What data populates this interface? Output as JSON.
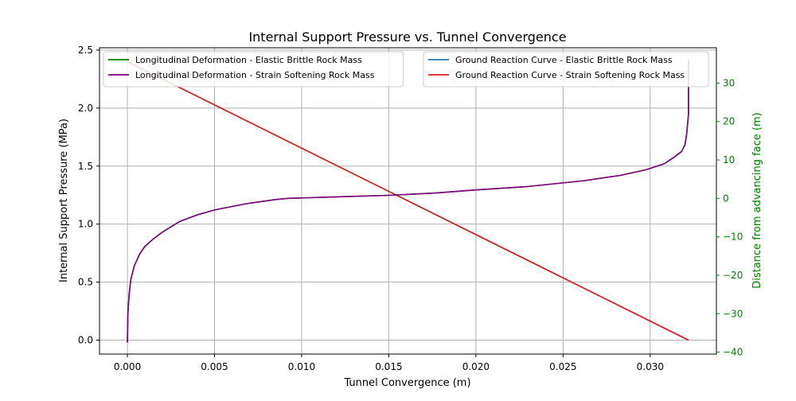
{
  "chart_data": {
    "type": "line",
    "title": "Internal Support Pressure vs. Tunnel Convergence",
    "xlabel": "Tunnel Convergence (m)",
    "ylabel": "Internal Support Pressure (MPa)",
    "y2label": "Distance from advancing face (m)",
    "xlim": [
      -0.0016,
      0.0338
    ],
    "ylim": [
      -0.12,
      2.52
    ],
    "y2lim": [
      -40.5,
      39.2
    ],
    "xticks": [
      {
        "value": 0.0,
        "label": "0.000"
      },
      {
        "value": 0.005,
        "label": "0.005"
      },
      {
        "value": 0.01,
        "label": "0.010"
      },
      {
        "value": 0.015,
        "label": "0.015"
      },
      {
        "value": 0.02,
        "label": "0.020"
      },
      {
        "value": 0.025,
        "label": "0.025"
      },
      {
        "value": 0.03,
        "label": "0.030"
      }
    ],
    "yticks": [
      {
        "value": 0.0,
        "label": "0.0"
      },
      {
        "value": 0.5,
        "label": "0.5"
      },
      {
        "value": 1.0,
        "label": "1.0"
      },
      {
        "value": 1.5,
        "label": "1.5"
      },
      {
        "value": 2.0,
        "label": "2.0"
      },
      {
        "value": 2.5,
        "label": "2.5"
      }
    ],
    "y2ticks": [
      {
        "value": -40,
        "label": "−40"
      },
      {
        "value": -30,
        "label": "−30"
      },
      {
        "value": -20,
        "label": "−20"
      },
      {
        "value": -10,
        "label": "−10"
      },
      {
        "value": 0,
        "label": "0"
      },
      {
        "value": 10,
        "label": "10"
      },
      {
        "value": 20,
        "label": "20"
      },
      {
        "value": 30,
        "label": "30"
      }
    ],
    "grid": true,
    "axis_colors": {
      "left": "#000000",
      "right": "#008000"
    },
    "series": [
      {
        "name": "Ground Reaction Curve - Elastic Brittle Rock Mass",
        "axis": "left",
        "color": "#1f77b4",
        "x": [
          0.0,
          0.0322
        ],
        "y": [
          2.4,
          0.0
        ]
      },
      {
        "name": "Ground Reaction Curve - Strain Softening Rock Mass",
        "axis": "left",
        "color": "#e31a1c",
        "x": [
          0.0,
          0.0322
        ],
        "y": [
          2.4,
          0.0
        ]
      },
      {
        "name": "Longitudinal Deformation - Elastic Brittle Rock Mass",
        "axis": "right",
        "color": "#008000",
        "x": [
          0.0,
          3e-05,
          0.0001,
          0.0002,
          0.0004,
          0.0007,
          0.001,
          0.0015,
          0.002,
          0.003,
          0.004,
          0.005,
          0.0068,
          0.0085,
          0.0092,
          0.012,
          0.015,
          0.0177,
          0.02,
          0.023,
          0.0262,
          0.0283,
          0.0298,
          0.0308,
          0.0314,
          0.0318,
          0.032,
          0.0321,
          0.0322,
          0.0322,
          0.0322
        ],
        "y": [
          -37.5,
          -30,
          -25,
          -21,
          -17.5,
          -14.5,
          -12.5,
          -10.5,
          -8.8,
          -6,
          -4.3,
          -3,
          -1.4,
          -0.3,
          0,
          0.4,
          0.8,
          1.4,
          2.2,
          3.1,
          4.6,
          6,
          7.5,
          9,
          10.8,
          12.2,
          14,
          17,
          22,
          30,
          36
        ]
      },
      {
        "name": "Longitudinal Deformation - Strain Softening Rock Mass",
        "axis": "right",
        "color": "#800080",
        "x": [
          0.0,
          3e-05,
          0.0001,
          0.0002,
          0.0004,
          0.0007,
          0.001,
          0.0015,
          0.002,
          0.003,
          0.004,
          0.005,
          0.0068,
          0.0085,
          0.0092,
          0.012,
          0.015,
          0.0177,
          0.02,
          0.023,
          0.0262,
          0.0283,
          0.0298,
          0.0308,
          0.0314,
          0.0318,
          0.032,
          0.0321,
          0.0322,
          0.0322,
          0.0322
        ],
        "y": [
          -37.5,
          -30,
          -25,
          -21,
          -17.5,
          -14.5,
          -12.5,
          -10.5,
          -8.8,
          -6,
          -4.3,
          -3,
          -1.4,
          -0.3,
          0,
          0.4,
          0.8,
          1.4,
          2.2,
          3.1,
          4.6,
          6,
          7.5,
          9,
          10.8,
          12.2,
          14,
          17,
          22,
          30,
          36
        ]
      }
    ],
    "legends": [
      {
        "placement": "upper-left",
        "entries": [
          2,
          3
        ]
      },
      {
        "placement": "upper-right",
        "entries": [
          0,
          1
        ]
      }
    ]
  }
}
